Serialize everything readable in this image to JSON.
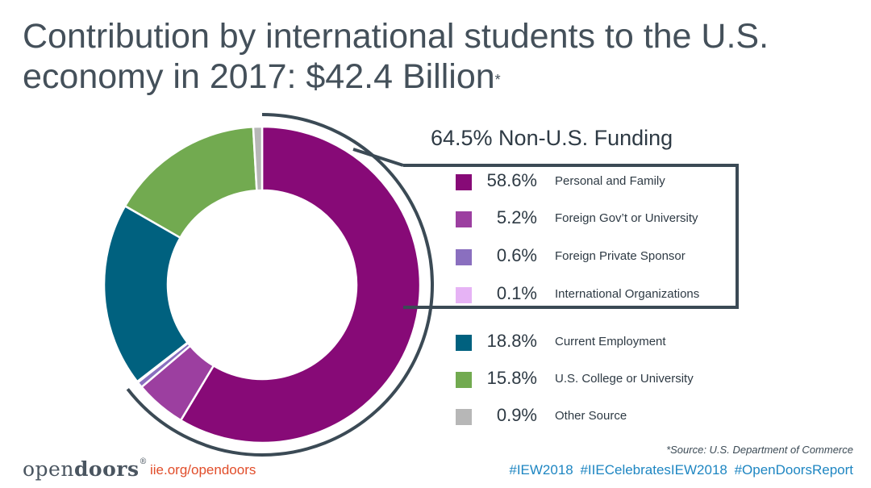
{
  "title": {
    "text": "Contribution by international students to the U.S. economy in 2017: $42.4 Billion",
    "footnote_mark": "*"
  },
  "chart_data": {
    "type": "pie",
    "style": "donut",
    "title": "Contribution by international students to the U.S. economy in 2017: $42.4 Billion",
    "group_label": "64.5% Non-U.S. Funding",
    "slices": [
      {
        "label": "Personal and Family",
        "value": 58.6,
        "display": "58.6%",
        "color": "#870a77",
        "group": "non-us"
      },
      {
        "label": "Foreign Gov’t or University",
        "value": 5.2,
        "display": "5.2%",
        "color": "#9c3fa0",
        "group": "non-us"
      },
      {
        "label": "Foreign Private Sponsor",
        "value": 0.6,
        "display": "0.6%",
        "color": "#8a6fbf",
        "group": "non-us"
      },
      {
        "label": "International Organizations",
        "value": 0.1,
        "display": "0.1%",
        "color": "#e6b3f5",
        "group": "non-us"
      },
      {
        "label": "Current Employment",
        "value": 18.8,
        "display": "18.8%",
        "color": "#00617f",
        "group": "other"
      },
      {
        "label": "U.S. College or University",
        "value": 15.8,
        "display": "15.8%",
        "color": "#72aa50",
        "group": "other"
      },
      {
        "label": "Other Source",
        "value": 0.9,
        "display": "0.9%",
        "color": "#b7b7b7",
        "group": "other"
      }
    ],
    "legend_placement": "right"
  },
  "source_note": "*Source: U.S. Department of Commerce",
  "footer": {
    "logo_light": "open",
    "logo_bold": "doors",
    "logo_mark": "®",
    "site": "iie.org/opendoors",
    "hashtags": "#IEW2018  #IIECelebratesIEW2018  #OpenDoorsReport"
  }
}
